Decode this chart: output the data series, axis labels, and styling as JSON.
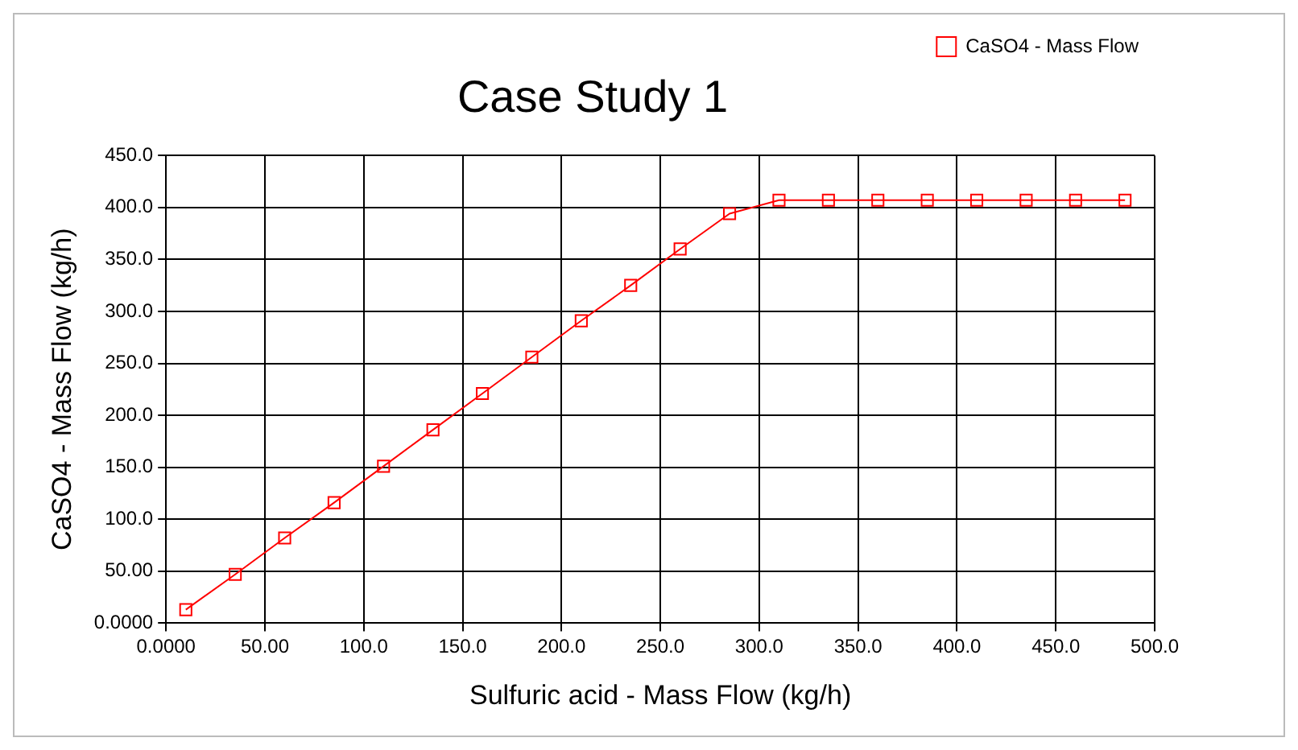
{
  "chart_data": {
    "type": "line",
    "title": "Case Study 1",
    "xlabel": "Sulfuric acid - Mass Flow (kg/h)",
    "ylabel": "CaSO4 - Mass Flow (kg/h)",
    "x": [
      10,
      35,
      60,
      85,
      110,
      135,
      160,
      185,
      210,
      235,
      260,
      285,
      310,
      335,
      360,
      385,
      410,
      435,
      460,
      485
    ],
    "series": [
      {
        "name": "CaSO4 - Mass Flow",
        "color": "#ff0000",
        "values": [
          13,
          47,
          82,
          116,
          151,
          186,
          221,
          256,
          291,
          325,
          360,
          394,
          407,
          407,
          407,
          407,
          407,
          407,
          407,
          407
        ]
      }
    ],
    "xlim": [
      0,
      500
    ],
    "ylim": [
      0,
      450
    ],
    "xticks": [
      {
        "value": 0,
        "label": "0.0000"
      },
      {
        "value": 50,
        "label": "50.00"
      },
      {
        "value": 100,
        "label": "100.0"
      },
      {
        "value": 150,
        "label": "150.0"
      },
      {
        "value": 200,
        "label": "200.0"
      },
      {
        "value": 250,
        "label": "250.0"
      },
      {
        "value": 300,
        "label": "300.0"
      },
      {
        "value": 350,
        "label": "350.0"
      },
      {
        "value": 400,
        "label": "400.0"
      },
      {
        "value": 450,
        "label": "450.0"
      },
      {
        "value": 500,
        "label": "500.0"
      }
    ],
    "yticks": [
      {
        "value": 0,
        "label": "0.0000"
      },
      {
        "value": 50,
        "label": "50.00"
      },
      {
        "value": 100,
        "label": "100.0"
      },
      {
        "value": 150,
        "label": "150.0"
      },
      {
        "value": 200,
        "label": "200.0"
      },
      {
        "value": 250,
        "label": "250.0"
      },
      {
        "value": 300,
        "label": "300.0"
      },
      {
        "value": 350,
        "label": "350.0"
      },
      {
        "value": 400,
        "label": "400.0"
      },
      {
        "value": 450,
        "label": "450.0"
      }
    ],
    "grid": true,
    "legend": "top right",
    "marker": "square",
    "line_style": "solid"
  }
}
